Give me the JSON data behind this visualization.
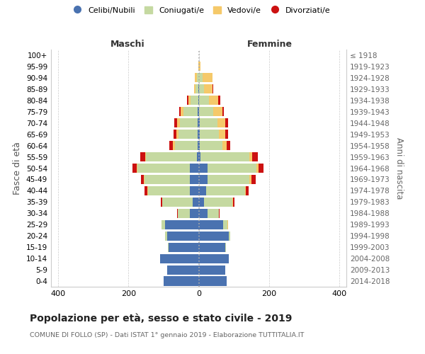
{
  "age_groups_bottom_to_top": [
    "0-4",
    "5-9",
    "10-14",
    "15-19",
    "20-24",
    "25-29",
    "30-34",
    "35-39",
    "40-44",
    "45-49",
    "50-54",
    "55-59",
    "60-64",
    "65-69",
    "70-74",
    "75-79",
    "80-84",
    "85-89",
    "90-94",
    "95-99",
    "100+"
  ],
  "birth_years_bottom_to_top": [
    "2014-2018",
    "2009-2013",
    "2004-2008",
    "1999-2003",
    "1994-1998",
    "1989-1993",
    "1984-1988",
    "1979-1983",
    "1974-1978",
    "1969-1973",
    "1964-1968",
    "1959-1963",
    "1954-1958",
    "1949-1953",
    "1944-1948",
    "1939-1943",
    "1934-1938",
    "1929-1933",
    "1924-1928",
    "1919-1923",
    "≤ 1918"
  ],
  "maschi_celibi": [
    100,
    90,
    110,
    85,
    90,
    95,
    25,
    18,
    25,
    25,
    25,
    5,
    3,
    3,
    3,
    3,
    2,
    2,
    0,
    0,
    0
  ],
  "maschi_coniugati": [
    0,
    0,
    0,
    2,
    5,
    10,
    35,
    85,
    120,
    130,
    150,
    145,
    65,
    55,
    50,
    40,
    22,
    8,
    5,
    0,
    0
  ],
  "maschi_vedovi": [
    0,
    0,
    0,
    0,
    0,
    0,
    0,
    0,
    2,
    2,
    2,
    2,
    5,
    6,
    8,
    8,
    5,
    4,
    7,
    2,
    0
  ],
  "maschi_divorziati": [
    0,
    0,
    0,
    0,
    0,
    0,
    2,
    4,
    8,
    8,
    12,
    15,
    10,
    8,
    8,
    5,
    5,
    0,
    0,
    0,
    0
  ],
  "femmine_nubili": [
    80,
    75,
    85,
    75,
    85,
    70,
    25,
    15,
    22,
    25,
    25,
    5,
    3,
    3,
    3,
    2,
    2,
    2,
    0,
    0,
    0
  ],
  "femmine_coniugate": [
    0,
    0,
    0,
    2,
    5,
    12,
    32,
    80,
    110,
    120,
    140,
    140,
    65,
    55,
    50,
    40,
    28,
    14,
    12,
    0,
    0
  ],
  "femmine_vedove": [
    0,
    0,
    0,
    0,
    0,
    1,
    1,
    2,
    2,
    5,
    5,
    8,
    12,
    18,
    22,
    25,
    26,
    24,
    28,
    5,
    0
  ],
  "femmine_divorziate": [
    0,
    0,
    0,
    0,
    0,
    1,
    2,
    4,
    8,
    12,
    15,
    15,
    10,
    8,
    8,
    5,
    5,
    2,
    0,
    0,
    0
  ],
  "color_celibi": "#4a72b0",
  "color_coniugati": "#c5d9a1",
  "color_vedovi": "#f5c96a",
  "color_divorziati": "#cc1111",
  "legend_labels": [
    "Celibi/Nubili",
    "Coniugati/e",
    "Vedovi/e",
    "Divorziati/e"
  ],
  "title": "Popolazione per età, sesso e stato civile - 2019",
  "subtitle": "COMUNE DI FOLLO (SP) - Dati ISTAT 1° gennaio 2019 - Elaborazione TUTTITALIA.IT",
  "label_maschi": "Maschi",
  "label_femmine": "Femmine",
  "label_fasce": "Fasce di età",
  "label_anni": "Anni di nascita",
  "xlim": 420
}
